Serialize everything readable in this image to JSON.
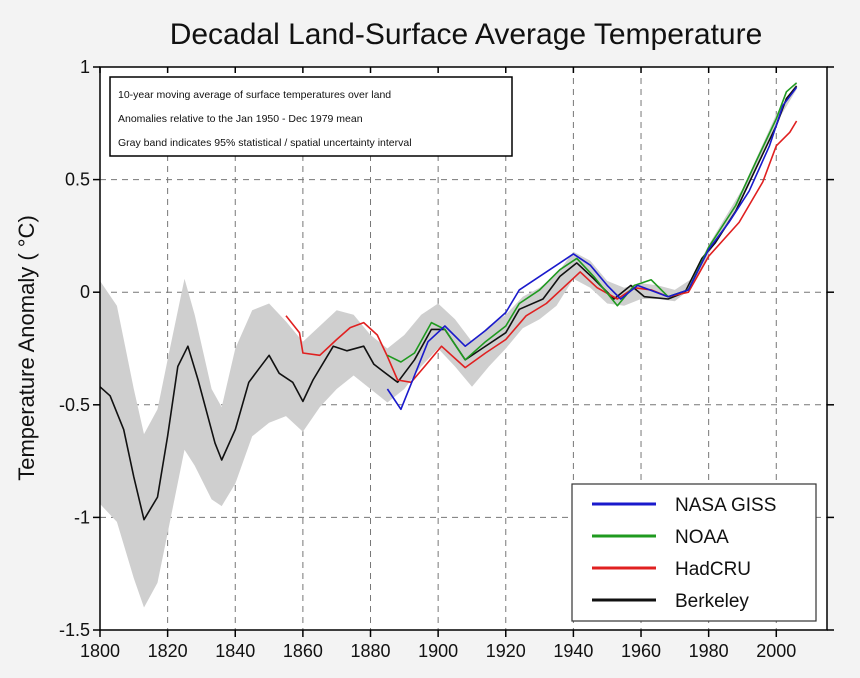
{
  "chart_data": {
    "type": "line",
    "title": "Decadal Land-Surface Average Temperature",
    "xlabel": "",
    "ylabel": "Temperature Anomaly ( °C)",
    "xlim": [
      1800,
      2015
    ],
    "ylim": [
      -1.5,
      1
    ],
    "xticks": [
      "1800",
      "1820",
      "1840",
      "1860",
      "1880",
      "1900",
      "1920",
      "1940",
      "1960",
      "1980",
      "2000"
    ],
    "yticks": [
      "1",
      "0.5",
      "0",
      "-0.5",
      "-1",
      "-1.5"
    ],
    "grid": true,
    "legend_position": "bottom-right",
    "annotation": [
      "10-year moving average of surface temperatures over land",
      "Anomalies relative to the Jan 1950 - Dec 1979 mean",
      "Gray band indicates 95% statistical / spatial uncertainty interval"
    ],
    "band": {
      "color": "#cfcfcf",
      "x": [
        1800,
        1805,
        1810,
        1813,
        1817,
        1820,
        1825,
        1828,
        1833,
        1836,
        1840,
        1845,
        1850,
        1855,
        1860,
        1865,
        1870,
        1875,
        1880,
        1885,
        1890,
        1895,
        1900,
        1905,
        1910,
        1915,
        1920,
        1925,
        1930,
        1935,
        1940,
        1945,
        1950,
        1955,
        1960,
        1965,
        1970,
        1975,
        1980,
        1990,
        2000,
        2006
      ],
      "upper": [
        0.05,
        -0.06,
        -0.43,
        -0.63,
        -0.52,
        -0.3,
        0.06,
        -0.1,
        -0.43,
        -0.51,
        -0.25,
        -0.08,
        -0.05,
        -0.13,
        -0.22,
        -0.15,
        -0.08,
        -0.1,
        -0.19,
        -0.25,
        -0.19,
        -0.1,
        -0.05,
        -0.12,
        -0.22,
        -0.15,
        -0.1,
        -0.02,
        0.02,
        0.08,
        0.18,
        0.14,
        0.05,
        0.02,
        0.04,
        0.03,
        0.01,
        0.06,
        0.21,
        0.46,
        0.79,
        0.93
      ],
      "lower": [
        -0.94,
        -1.02,
        -1.27,
        -1.4,
        -1.29,
        -1.07,
        -0.7,
        -0.77,
        -0.92,
        -0.95,
        -0.85,
        -0.64,
        -0.58,
        -0.55,
        -0.62,
        -0.51,
        -0.43,
        -0.37,
        -0.43,
        -0.49,
        -0.43,
        -0.33,
        -0.25,
        -0.33,
        -0.42,
        -0.33,
        -0.25,
        -0.16,
        -0.12,
        -0.06,
        0.06,
        0.02,
        -0.05,
        -0.06,
        -0.03,
        -0.03,
        -0.04,
        0.02,
        0.17,
        0.42,
        0.75,
        0.9
      ]
    },
    "series": [
      {
        "name": "NASA GISS",
        "color": "#1a1acc",
        "x": [
          1885,
          1889,
          1893,
          1897,
          1902,
          1908,
          1914,
          1920,
          1924,
          1930,
          1936,
          1940,
          1945,
          1950,
          1954,
          1959,
          1968,
          1974,
          1980,
          1986,
          1992,
          1998,
          2002,
          2006
        ],
        "y": [
          -0.43,
          -0.52,
          -0.37,
          -0.22,
          -0.15,
          -0.24,
          -0.17,
          -0.09,
          0.01,
          0.07,
          0.13,
          0.17,
          0.12,
          0.03,
          -0.03,
          0.03,
          -0.02,
          0.01,
          0.19,
          0.31,
          0.45,
          0.65,
          0.83,
          0.91
        ]
      },
      {
        "name": "NOAA",
        "color": "#1f9a1f",
        "x": [
          1885,
          1889,
          1893,
          1898,
          1902,
          1908,
          1914,
          1920,
          1924,
          1930,
          1936,
          1941,
          1946,
          1953,
          1958,
          1963,
          1968,
          1974,
          1980,
          1988,
          1994,
          2000,
          2003,
          2006
        ],
        "y": [
          -0.28,
          -0.31,
          -0.27,
          -0.135,
          -0.165,
          -0.3,
          -0.22,
          -0.15,
          -0.05,
          0.01,
          0.1,
          0.15,
          0.07,
          -0.06,
          0.03,
          0.055,
          -0.02,
          0.01,
          0.2,
          0.385,
          0.58,
          0.77,
          0.89,
          0.93
        ]
      },
      {
        "name": "HadCRU",
        "color": "#e02020",
        "x": [
          1855,
          1859,
          1860,
          1865,
          1870,
          1874,
          1878,
          1882,
          1885,
          1888,
          1892,
          1896,
          1901,
          1908,
          1914,
          1920,
          1926,
          1932,
          1937,
          1942,
          1947,
          1953,
          1958,
          1963,
          1968,
          1974,
          1980,
          1989,
          1996,
          2000,
          2004,
          2006
        ],
        "y": [
          -0.105,
          -0.18,
          -0.27,
          -0.28,
          -0.21,
          -0.157,
          -0.135,
          -0.19,
          -0.285,
          -0.39,
          -0.4,
          -0.33,
          -0.24,
          -0.335,
          -0.27,
          -0.21,
          -0.105,
          -0.05,
          0.02,
          0.09,
          0.02,
          -0.03,
          0.02,
          0.01,
          -0.02,
          0.0,
          0.16,
          0.31,
          0.49,
          0.65,
          0.71,
          0.76
        ]
      },
      {
        "name": "Berkeley",
        "color": "#111111",
        "x": [
          1800,
          1803,
          1807,
          1810,
          1813,
          1817,
          1820,
          1823,
          1826,
          1829,
          1834,
          1836,
          1840,
          1844,
          1847,
          1850,
          1853,
          1857,
          1860,
          1863,
          1869,
          1873,
          1878,
          1881,
          1888,
          1893,
          1898,
          1902,
          1908,
          1913,
          1920,
          1924,
          1931,
          1936,
          1941,
          1946,
          1952,
          1957,
          1961,
          1968,
          1973,
          1978,
          1982,
          1988,
          1994,
          2000,
          2003,
          2006
        ],
        "y": [
          -0.42,
          -0.46,
          -0.61,
          -0.82,
          -1.01,
          -0.91,
          -0.64,
          -0.33,
          -0.24,
          -0.39,
          -0.67,
          -0.745,
          -0.61,
          -0.4,
          -0.34,
          -0.28,
          -0.36,
          -0.4,
          -0.485,
          -0.39,
          -0.24,
          -0.26,
          -0.24,
          -0.32,
          -0.4,
          -0.3,
          -0.165,
          -0.165,
          -0.3,
          -0.25,
          -0.18,
          -0.076,
          -0.03,
          0.07,
          0.13,
          0.06,
          -0.03,
          0.03,
          -0.02,
          -0.03,
          0.0,
          0.15,
          0.22,
          0.36,
          0.55,
          0.74,
          0.86,
          0.915
        ]
      }
    ]
  }
}
